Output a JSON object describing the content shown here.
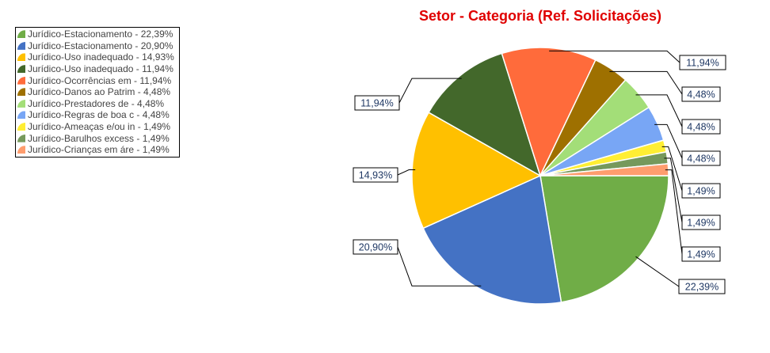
{
  "chart_data": {
    "type": "pie",
    "title": "Setor - Categoria (Ref. Solicitações)",
    "legend_position": "top-left",
    "slices": [
      {
        "label": "Jurídico-Estacionamento - 22,39%",
        "value": 22.39,
        "data_label": "22,39%",
        "color": "#70ad47"
      },
      {
        "label": "Jurídico-Estacionamento - 20,90%",
        "value": 20.9,
        "data_label": "20,90%",
        "color": "#4472c4"
      },
      {
        "label": "Jurídico-Uso inadequado - 14,93%",
        "value": 14.93,
        "data_label": "14,93%",
        "color": "#ffc000"
      },
      {
        "label": "Jurídico-Uso inadequado - 11,94%",
        "value": 11.94,
        "data_label": "11,94%",
        "color": "#43682b"
      },
      {
        "label": "Jurídico-Ocorrências em - 11,94%",
        "value": 11.94,
        "data_label": "11,94%",
        "color": "#ff6b3b"
      },
      {
        "label": "Jurídico-Danos ao Patrim - 4,48%",
        "value": 4.48,
        "data_label": "4,48%",
        "color": "#9e7000"
      },
      {
        "label": "Jurídico-Prestadores de - 4,48%",
        "value": 4.48,
        "data_label": "4,48%",
        "color": "#a3de78"
      },
      {
        "label": "Jurídico-Regras de boa c - 4,48%",
        "value": 4.48,
        "data_label": "4,48%",
        "color": "#78a6f5"
      },
      {
        "label": "Jurídico-Ameaças e/ou in - 1,49%",
        "value": 1.49,
        "data_label": "1,49%",
        "color": "#ffee33"
      },
      {
        "label": "Jurídico-Barulhos excess - 1,49%",
        "value": 1.49,
        "data_label": "1,49%",
        "color": "#76995c"
      },
      {
        "label": "Jurídico-Crianças em áre - 1,49%",
        "value": 1.49,
        "data_label": "1,49%",
        "color": "#ff9d6e"
      }
    ]
  }
}
